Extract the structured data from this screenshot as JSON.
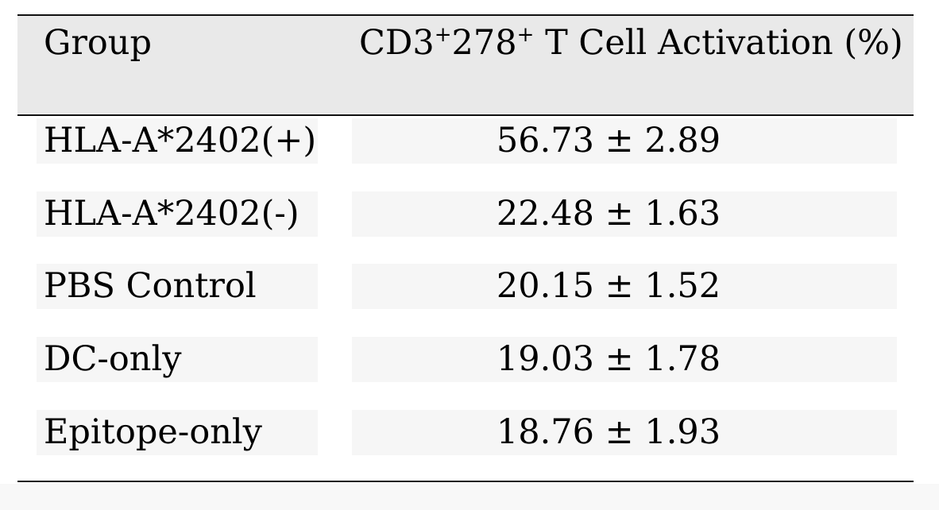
{
  "table": {
    "header": {
      "group": "Group",
      "value_prefix": "CD3",
      "value_sup1": "+",
      "value_mid": "278",
      "value_sup2": "+",
      "value_suffix": " T Cell Activation (%)"
    },
    "rows": [
      {
        "group": "HLA-A*2402(+)",
        "value": "56.73 ± 2.89"
      },
      {
        "group": "HLA-A*2402(-)",
        "value": "22.48 ± 1.63"
      },
      {
        "group": "PBS Control",
        "value": "20.15 ± 1.52"
      },
      {
        "group": "DC-only",
        "value": "19.03 ± 1.78"
      },
      {
        "group": "Epitope-only",
        "value": "18.76 ± 1.93"
      }
    ]
  }
}
